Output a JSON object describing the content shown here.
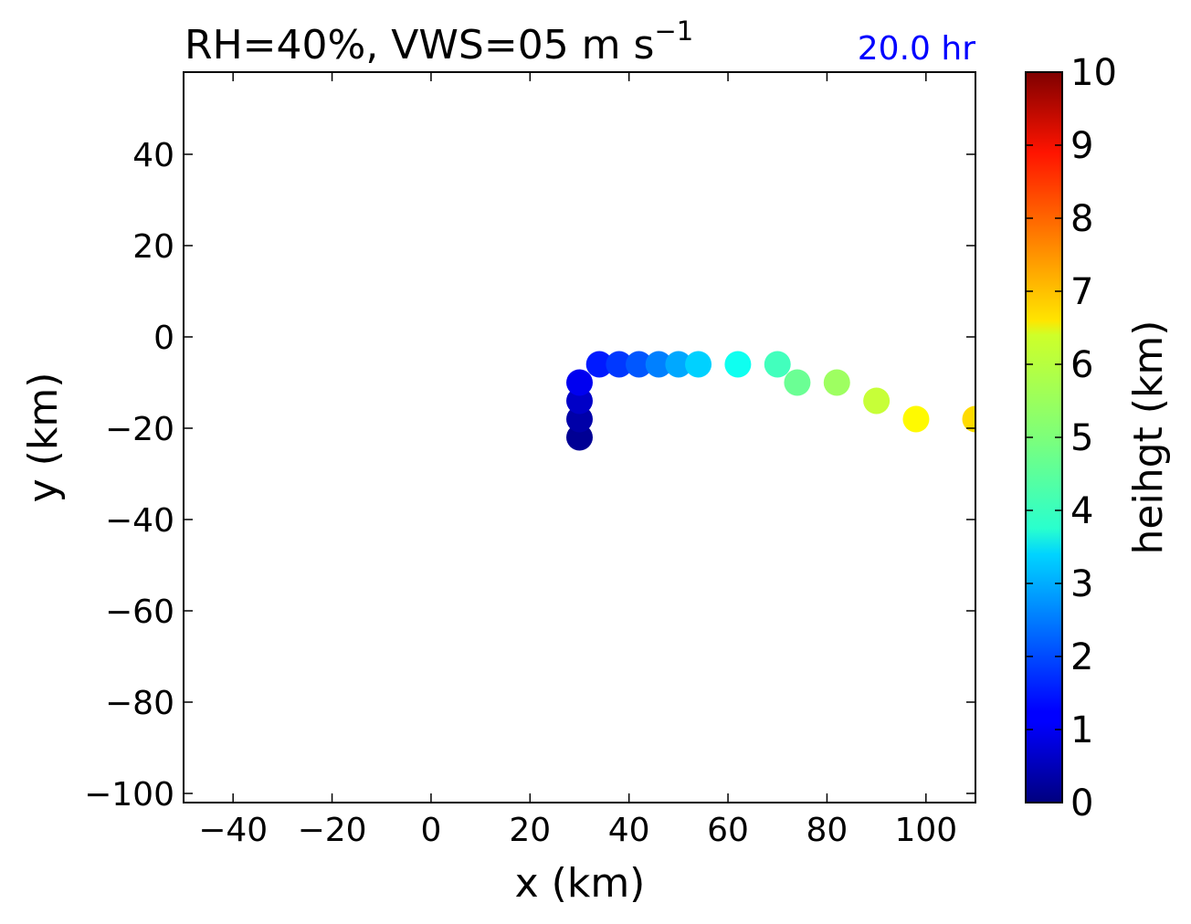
{
  "chart_data": {
    "type": "scatter",
    "title": "RH=40%, VWS=05 m s",
    "title_superscript": "−1",
    "annotation": "20.0 hr",
    "annotation_color": "#0000ff",
    "xlabel": "x (km)",
    "ylabel": "y (km)",
    "xlim": [
      -50,
      110
    ],
    "ylim": [
      -102,
      58
    ],
    "xticks": [
      -40,
      -20,
      0,
      20,
      40,
      60,
      80,
      100
    ],
    "xtick_labels": [
      "−40",
      "−20",
      "0",
      "20",
      "40",
      "60",
      "80",
      "100"
    ],
    "yticks": [
      40,
      20,
      0,
      -20,
      -40,
      -60,
      -80,
      -100
    ],
    "ytick_labels": [
      "40",
      "20",
      "0",
      "−20",
      "−40",
      "−60",
      "−80",
      "−100"
    ],
    "grid": false,
    "colormap": "jet",
    "colorbar": {
      "label": "heihgt (km)",
      "range": [
        0,
        10
      ],
      "ticks": [
        0,
        1,
        2,
        3,
        4,
        5,
        6,
        7,
        8,
        9,
        10
      ],
      "tick_labels": [
        "0",
        "1",
        "2",
        "3",
        "4",
        "5",
        "6",
        "7",
        "8",
        "9",
        "10"
      ]
    },
    "points": [
      {
        "x": 30,
        "y": -22,
        "z": 0.2
      },
      {
        "x": 30,
        "y": -18,
        "z": 0.4
      },
      {
        "x": 30,
        "y": -14,
        "z": 0.7
      },
      {
        "x": 30,
        "y": -10,
        "z": 1.1
      },
      {
        "x": 34,
        "y": -6,
        "z": 1.5
      },
      {
        "x": 38,
        "y": -6,
        "z": 1.8
      },
      {
        "x": 42,
        "y": -6,
        "z": 2.1
      },
      {
        "x": 46,
        "y": -6,
        "z": 2.5
      },
      {
        "x": 50,
        "y": -6,
        "z": 2.9
      },
      {
        "x": 54,
        "y": -6,
        "z": 3.3
      },
      {
        "x": 62,
        "y": -6,
        "z": 3.9
      },
      {
        "x": 70,
        "y": -6,
        "z": 4.4
      },
      {
        "x": 74,
        "y": -10,
        "z": 4.8
      },
      {
        "x": 82,
        "y": -10,
        "z": 5.3
      },
      {
        "x": 90,
        "y": -14,
        "z": 5.7
      },
      {
        "x": 98,
        "y": -18,
        "z": 6.3
      },
      {
        "x": 110,
        "y": -18,
        "z": 6.6
      }
    ]
  }
}
